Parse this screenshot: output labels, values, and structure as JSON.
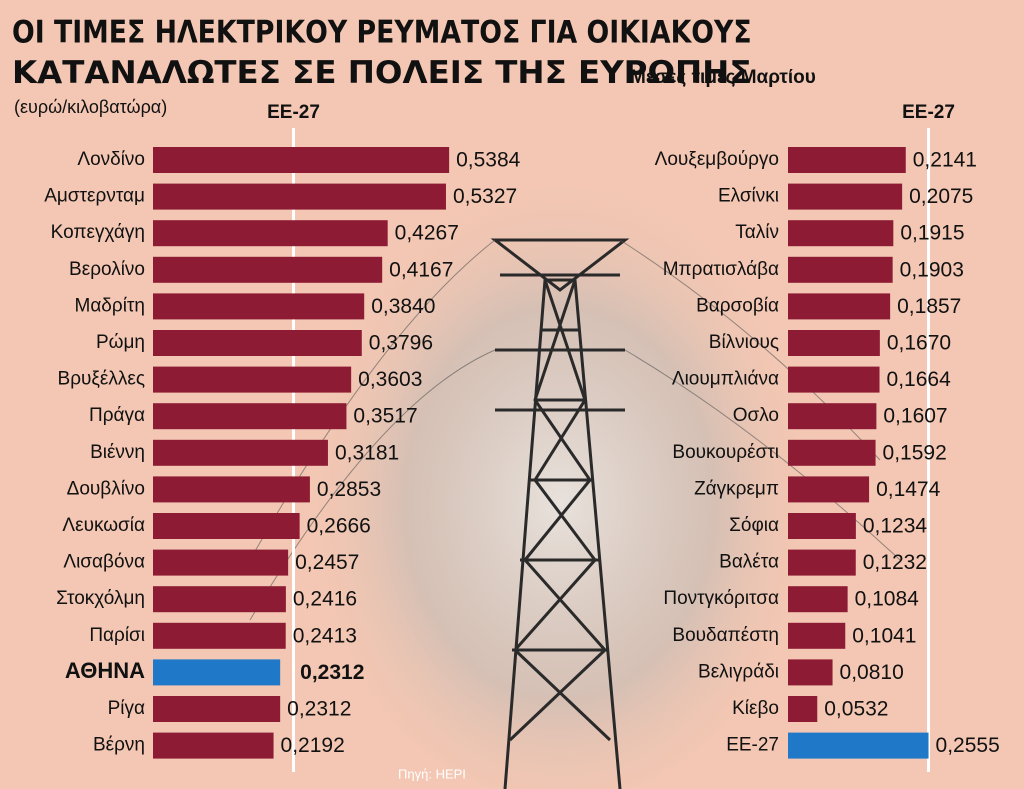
{
  "title": [
    "ΟΙ ΤΙΜΕΣ ΗΛΕΚΤΡΙΚΟΥ ΡΕΥΜΑΤΟΣ ΓΙΑ ΟΙΚΙΑΚΟΥΣ",
    "ΚΑΤΑΝΑΛΩΤΕΣ ΣΕ ΠΟΛΕΙΣ ΤΗΣ ΕΥΡΩΠΗΣ"
  ],
  "subtitle": "Μέσες τιμές Μαρτίου",
  "unit_label": "(ευρώ/κιλοβατώρα)",
  "source": "Πηγή: HEPI",
  "chart_data": [
    {
      "type": "bar",
      "orientation": "horizontal",
      "categories": [
        "Λονδίνο",
        "Αμστερνταμ",
        "Κοπεγχάγη",
        "Βερολίνο",
        "Μαδρίτη",
        "Ρώμη",
        "Βρυξέλλες",
        "Πράγα",
        "Βιέννη",
        "Δουβλίνο",
        "Λευκωσία",
        "Λισαβόνα",
        "Στοκχόλμη",
        "Παρίσι",
        "ΑΘΗΝΑ",
        "Ρίγα",
        "Βέρνη"
      ],
      "values": [
        0.5384,
        0.5327,
        0.4267,
        0.4167,
        0.384,
        0.3796,
        0.3603,
        0.3517,
        0.3181,
        0.2853,
        0.2666,
        0.2457,
        0.2416,
        0.2413,
        0.2312,
        0.2312,
        0.2192
      ],
      "value_labels": [
        "0,5384",
        "0,5327",
        "0,4267",
        "0,4167",
        "0,3840",
        "0,3796",
        "0,3603",
        "0,3517",
        "0,3181",
        "0,2853",
        "0,2666",
        "0,2457",
        "0,2416",
        "0,2413",
        "0,2312",
        "0,2312",
        "0,2192"
      ],
      "colors": [
        "#8e1b34",
        "#8e1b34",
        "#8e1b34",
        "#8e1b34",
        "#8e1b34",
        "#8e1b34",
        "#8e1b34",
        "#8e1b34",
        "#8e1b34",
        "#8e1b34",
        "#8e1b34",
        "#8e1b34",
        "#8e1b34",
        "#8e1b34",
        "#1f78c8",
        "#8e1b34",
        "#8e1b34"
      ],
      "reference": {
        "label": "ΕΕ-27",
        "value": 0.2555
      }
    },
    {
      "type": "bar",
      "orientation": "horizontal",
      "categories": [
        "Λουξεμβούργο",
        "Ελσίνκι",
        "Ταλίν",
        "Μπρατισλάβα",
        "Βαρσοβία",
        "Βίλνιους",
        "Λιουμπλιάνα",
        "Οσλο",
        "Βουκουρέστι",
        "Ζάγκρεμπ",
        "Σόφια",
        "Βαλέτα",
        "Ποντγκόριτσα",
        "Βουδαπέστη",
        "Βελιγράδι",
        "Κίεβο",
        "ΕΕ-27"
      ],
      "values": [
        0.2141,
        0.2075,
        0.1915,
        0.1903,
        0.1857,
        0.167,
        0.1664,
        0.1607,
        0.1592,
        0.1474,
        0.1234,
        0.1232,
        0.1084,
        0.1041,
        0.081,
        0.0532,
        0.2555
      ],
      "value_labels": [
        "0,2141",
        "0,2075",
        "0,1915",
        "0,1903",
        "0,1857",
        "0,1670",
        "0,1664",
        "0,1607",
        "0,1592",
        "0,1474",
        "0,1234",
        "0,1232",
        "0,1084",
        "0,1041",
        "0,0810",
        "0,0532",
        "0,2555"
      ],
      "colors": [
        "#8e1b34",
        "#8e1b34",
        "#8e1b34",
        "#8e1b34",
        "#8e1b34",
        "#8e1b34",
        "#8e1b34",
        "#8e1b34",
        "#8e1b34",
        "#8e1b34",
        "#8e1b34",
        "#8e1b34",
        "#8e1b34",
        "#8e1b34",
        "#8e1b34",
        "#8e1b34",
        "#1f78c8"
      ],
      "reference": {
        "label": "ΕΕ-27",
        "value": 0.2555
      }
    }
  ]
}
